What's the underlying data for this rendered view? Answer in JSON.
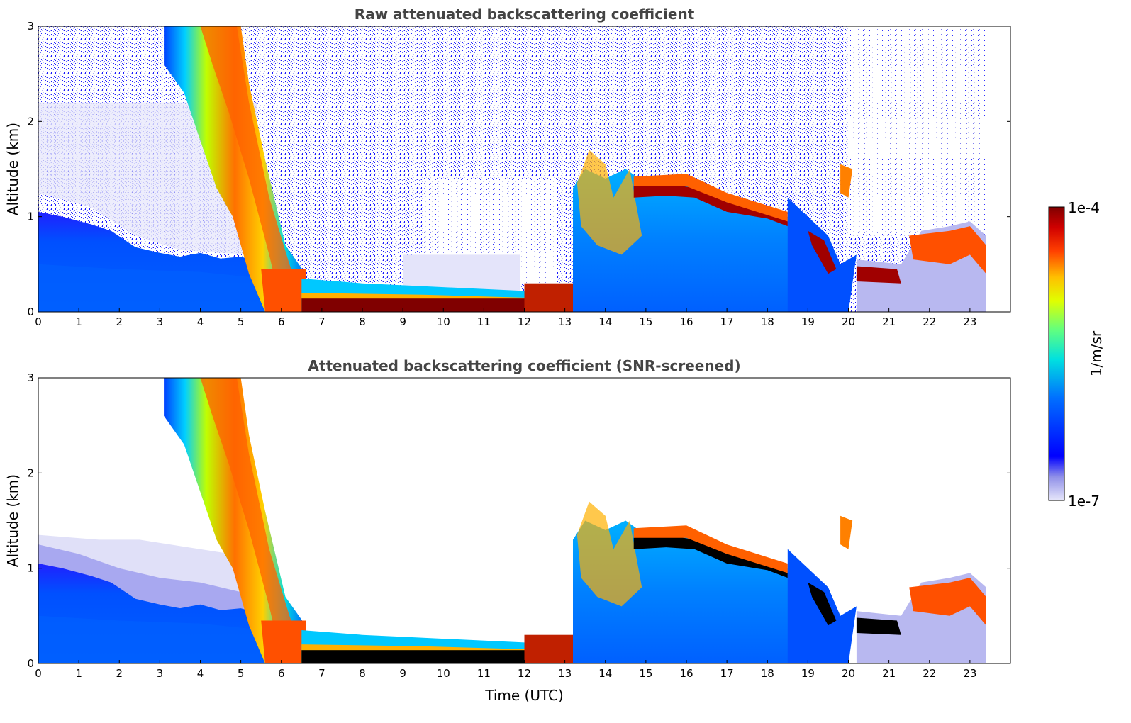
{
  "chart_data": [
    {
      "type": "heatmap",
      "title": "Raw attenuated backscattering coefficient",
      "xlabel": "",
      "ylabel": "Altitude (km)",
      "xlim": [
        0,
        24
      ],
      "ylim": [
        0,
        3
      ],
      "xticks": [
        0,
        1,
        2,
        3,
        4,
        5,
        6,
        7,
        8,
        9,
        10,
        11,
        12,
        13,
        14,
        15,
        16,
        17,
        18,
        19,
        20,
        21,
        22,
        23
      ],
      "yticks": [
        0,
        1,
        2,
        3
      ],
      "data_end_time": 23.4,
      "features": [
        {
          "name": "boundary layer",
          "start": 0,
          "end": 5.6,
          "top_km": [
            1.0,
            0.9,
            0.7,
            0.6,
            0.55,
            0.5
          ]
        },
        {
          "name": "descending aerosol layer",
          "start": 3.1,
          "end": 6.2,
          "top_km": 3.0,
          "bottom_km": 0.0
        },
        {
          "name": "surface layer",
          "start": 6.5,
          "end": 12.0,
          "height_km": 0.1
        },
        {
          "name": "cloud layer",
          "start": 13.3,
          "end": 18.5,
          "height_km": [
            1.6,
            1.3,
            1.2,
            1.1,
            1.0
          ]
        },
        {
          "name": "low cloud",
          "start": 20.2,
          "end": 23.4,
          "height_km": [
            0.4,
            0.45,
            0.7,
            0.8,
            0.6
          ]
        }
      ],
      "grid": false
    },
    {
      "type": "heatmap",
      "title": "Attenuated backscattering coefficient (SNR-screened)",
      "xlabel": "Time (UTC)",
      "ylabel": "Altitude (km)",
      "xlim": [
        0,
        24
      ],
      "ylim": [
        0,
        3
      ],
      "xticks": [
        0,
        1,
        2,
        3,
        4,
        5,
        6,
        7,
        8,
        9,
        10,
        11,
        12,
        13,
        14,
        15,
        16,
        17,
        18,
        19,
        20,
        21,
        22,
        23
      ],
      "yticks": [
        0,
        1,
        2,
        3
      ],
      "data_end_time": 23.4,
      "screened": true,
      "grid": false
    }
  ],
  "colorbar": {
    "label": "1/m/sr",
    "max_label": "1e-4",
    "min_label": "1e-7",
    "colors": [
      "#e6e6fa",
      "#b4b4f0",
      "#7878e6",
      "#0000ff",
      "#0050ff",
      "#00a0ff",
      "#00e0e0",
      "#40ff90",
      "#c8ff00",
      "#ffe000",
      "#ff8000",
      "#ff2000",
      "#c00000",
      "#800000"
    ]
  },
  "colors": {
    "layer_saturated_raw": "#800000",
    "layer_saturated_screened": "#000000",
    "title_color": "#444444"
  }
}
